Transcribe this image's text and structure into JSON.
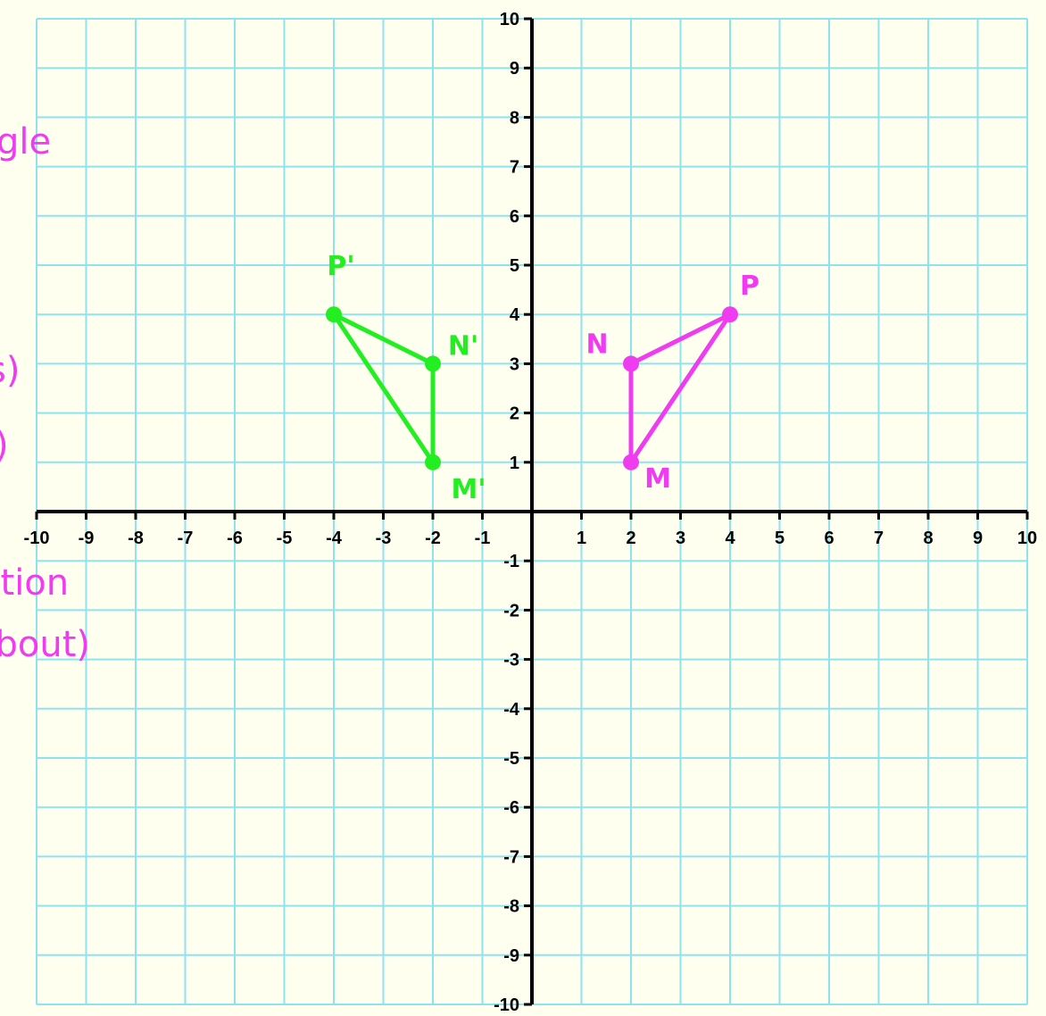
{
  "colors": {
    "background": "#fffff0",
    "grid": "#8fe3ef",
    "axis": "#000000",
    "original": "#f03cf0",
    "image": "#22ee22"
  },
  "axes": {
    "xlim": [
      -10,
      10
    ],
    "ylim": [
      -10,
      10
    ],
    "x_ticks": [
      "-10",
      "-9",
      "-8",
      "-7",
      "-6",
      "-5",
      "-4",
      "-3",
      "-2",
      "-1",
      "1",
      "2",
      "3",
      "4",
      "5",
      "6",
      "7",
      "8",
      "9",
      "10"
    ],
    "y_ticks": [
      "10",
      "9",
      "8",
      "7",
      "6",
      "5",
      "4",
      "3",
      "2",
      "1",
      "-1",
      "-2",
      "-3",
      "-4",
      "-5",
      "-6",
      "-7",
      "-8",
      "-9",
      "-10"
    ]
  },
  "margin_notes": [
    "gle",
    "s)",
    ")",
    "ation",
    "about)"
  ],
  "shapes": {
    "original": {
      "vertices": [
        {
          "name": "M",
          "x": 2,
          "y": 1
        },
        {
          "name": "N",
          "x": 2,
          "y": 3
        },
        {
          "name": "P",
          "x": 4,
          "y": 4
        }
      ]
    },
    "image": {
      "vertices": [
        {
          "name": "M'",
          "x": -2,
          "y": 1
        },
        {
          "name": "N'",
          "x": -2,
          "y": 3
        },
        {
          "name": "P'",
          "x": -4,
          "y": 4
        }
      ]
    }
  }
}
